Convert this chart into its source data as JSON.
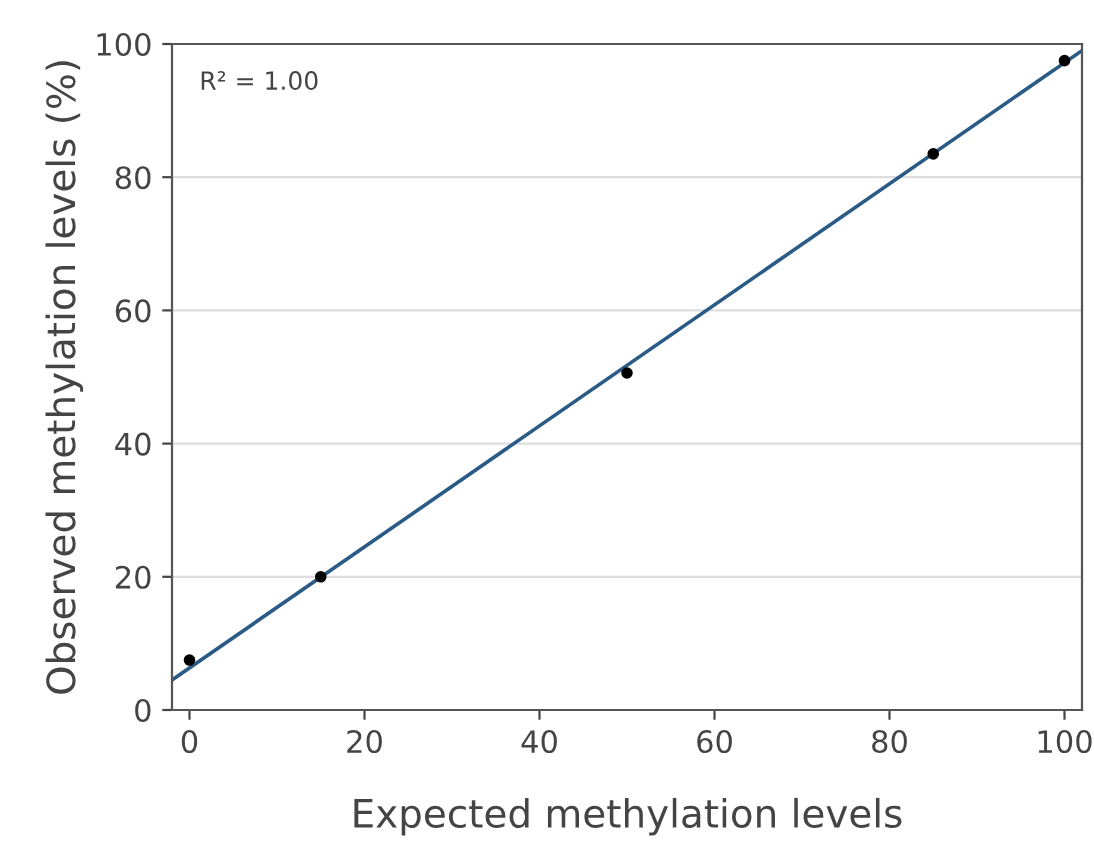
{
  "chart_data": {
    "type": "scatter",
    "xlabel": "Expected methylation levels",
    "ylabel": "Observed methylation levels (%)",
    "annotations": [
      "R² = 1.00"
    ],
    "xlim": [
      -2,
      102
    ],
    "ylim": [
      0,
      100
    ],
    "xticks": [
      0,
      20,
      40,
      60,
      80,
      100
    ],
    "yticks": [
      0,
      20,
      40,
      60,
      80,
      100
    ],
    "grid": "y",
    "marker": "circle",
    "series": [
      {
        "type": "line",
        "marker": "none",
        "color": "#2a5a86",
        "x": [
          -2,
          102
        ],
        "values": [
          4.5,
          99
        ]
      },
      {
        "color": "#000000",
        "x": [
          0,
          15,
          50,
          85,
          100
        ],
        "values": [
          7.5,
          20,
          50.6,
          83.5,
          97.5
        ]
      }
    ]
  }
}
